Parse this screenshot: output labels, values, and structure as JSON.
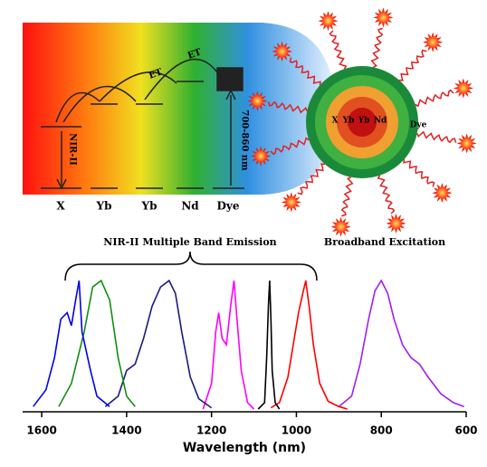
{
  "chart_data": {
    "type": "line",
    "x_label": "Wavelength (nm)",
    "xlim": [
      1645,
      600
    ],
    "ylim": [
      0,
      1
    ],
    "xticks": [
      600,
      800,
      1000,
      1200,
      1400,
      1600
    ],
    "series": [
      {
        "color": "#a020f0",
        "x": [
          900,
          870,
          850,
          830,
          815,
          800,
          785,
          770,
          750,
          730,
          710,
          690,
          660,
          630,
          605
        ],
        "values": [
          0.02,
          0.1,
          0.35,
          0.7,
          0.92,
          1.0,
          0.9,
          0.7,
          0.5,
          0.4,
          0.35,
          0.25,
          0.12,
          0.05,
          0.02
        ]
      },
      {
        "color": "#ff0000",
        "x": [
          1060,
          1040,
          1020,
          1005,
          995,
          985,
          978,
          970,
          960,
          945,
          925,
          900,
          880
        ],
        "values": [
          0.01,
          0.05,
          0.25,
          0.55,
          0.75,
          0.9,
          1.0,
          0.8,
          0.5,
          0.2,
          0.06,
          0.02,
          0
        ]
      },
      {
        "color": "#000000",
        "x": [
          1090,
          1075,
          1070,
          1066,
          1063,
          1060,
          1057,
          1050,
          1040
        ],
        "values": [
          0,
          0.05,
          0.4,
          0.8,
          1.0,
          0.7,
          0.3,
          0.05,
          0
        ]
      },
      {
        "color": "#ff00ff",
        "x": [
          1220,
          1200,
          1190,
          1183,
          1175,
          1165,
          1155,
          1147,
          1140,
          1130,
          1115,
          1100
        ],
        "values": [
          0,
          0.2,
          0.6,
          0.75,
          0.55,
          0.5,
          0.8,
          1.0,
          0.7,
          0.3,
          0.05,
          0
        ]
      },
      {
        "color": "#1a1a80",
        "x": [
          1450,
          1420,
          1400,
          1380,
          1360,
          1340,
          1320,
          1300,
          1285,
          1270,
          1250,
          1230,
          1200
        ],
        "values": [
          0.02,
          0.1,
          0.3,
          0.35,
          0.55,
          0.8,
          0.95,
          1.0,
          0.9,
          0.6,
          0.25,
          0.08,
          0.01
        ]
      },
      {
        "color": "#109010",
        "x": [
          1560,
          1530,
          1500,
          1480,
          1460,
          1440,
          1420,
          1400,
          1380
        ],
        "values": [
          0.02,
          0.2,
          0.6,
          0.95,
          1.0,
          0.85,
          0.4,
          0.1,
          0.02
        ]
      },
      {
        "color": "#0000ee",
        "x": [
          1620,
          1590,
          1570,
          1555,
          1540,
          1530,
          1520,
          1512,
          1505,
          1495,
          1485,
          1470,
          1440
        ],
        "values": [
          0.02,
          0.15,
          0.4,
          0.7,
          0.75,
          0.65,
          0.85,
          1.0,
          0.6,
          0.45,
          0.3,
          0.1,
          0.02
        ]
      }
    ]
  },
  "diagram": {
    "emission_label": "NIR-II Multiple Band Emission",
    "excitation_label": "Broadband Excitation",
    "levels": [
      "X",
      "Yb",
      "Yb",
      "Nd",
      "Dye"
    ],
    "transfer": [
      "ET",
      "ET"
    ],
    "nir_label": "NIR-II",
    "excitation_range": "700-860 nm",
    "particle_labels": [
      "X",
      "Yb",
      "Yb",
      "Nd",
      "Dye"
    ]
  }
}
